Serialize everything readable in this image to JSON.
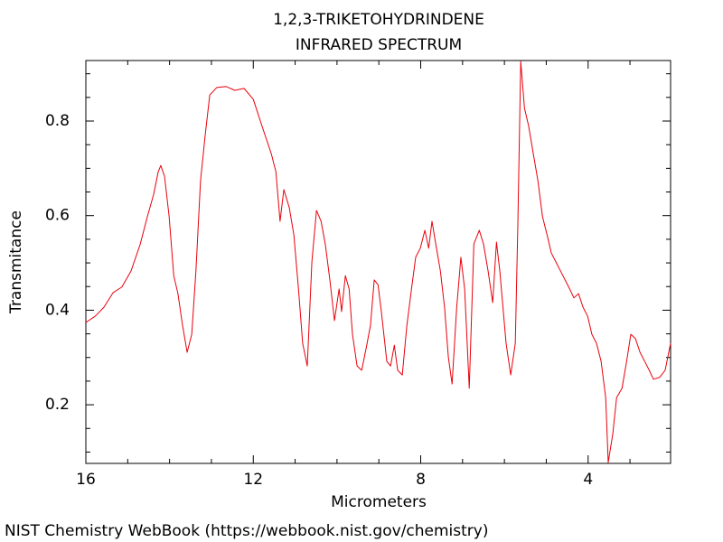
{
  "chart_data": {
    "type": "line",
    "title": "1,2,3-TRIKETOHYDRINDENE",
    "subtitle": "INFRARED SPECTRUM",
    "x_label": "Micrometers",
    "y_label": "Transmitance",
    "color": "#e8000b",
    "x": [
      16.0,
      15.78,
      15.57,
      15.35,
      15.14,
      14.92,
      14.7,
      14.53,
      14.38,
      14.27,
      14.21,
      14.12,
      14.01,
      13.9,
      13.8,
      13.69,
      13.58,
      13.47,
      13.37,
      13.26,
      13.15,
      13.04,
      12.87,
      12.65,
      12.44,
      12.22,
      12.0,
      11.79,
      11.57,
      11.46,
      11.36,
      11.27,
      11.14,
      11.03,
      10.92,
      10.82,
      10.71,
      10.6,
      10.49,
      10.38,
      10.28,
      10.17,
      10.06,
      9.95,
      9.89,
      9.8,
      9.71,
      9.63,
      9.52,
      9.41,
      9.3,
      9.2,
      9.11,
      9.02,
      8.94,
      8.81,
      8.72,
      8.63,
      8.55,
      8.44,
      8.33,
      8.22,
      8.12,
      8.01,
      7.9,
      7.81,
      7.73,
      7.64,
      7.53,
      7.43,
      7.34,
      7.25,
      7.14,
      7.04,
      6.95,
      6.84,
      6.73,
      6.6,
      6.5,
      6.39,
      6.28,
      6.19,
      6.11,
      5.96,
      5.85,
      5.74,
      5.68,
      5.61,
      5.52,
      5.42,
      5.31,
      5.2,
      5.09,
      4.98,
      4.88,
      4.77,
      4.66,
      4.55,
      4.44,
      4.34,
      4.23,
      4.12,
      4.01,
      3.91,
      3.8,
      3.69,
      3.58,
      3.52,
      3.41,
      3.32,
      3.19,
      3.08,
      2.98,
      2.87,
      2.76,
      2.65,
      2.54,
      2.44,
      2.29,
      2.16,
      2.03
    ],
    "values": [
      0.374,
      0.387,
      0.406,
      0.437,
      0.449,
      0.483,
      0.54,
      0.598,
      0.645,
      0.693,
      0.706,
      0.683,
      0.598,
      0.473,
      0.435,
      0.368,
      0.311,
      0.349,
      0.483,
      0.674,
      0.769,
      0.855,
      0.871,
      0.873,
      0.865,
      0.869,
      0.846,
      0.789,
      0.731,
      0.693,
      0.588,
      0.655,
      0.617,
      0.559,
      0.445,
      0.33,
      0.282,
      0.502,
      0.611,
      0.588,
      0.54,
      0.464,
      0.378,
      0.445,
      0.397,
      0.473,
      0.445,
      0.349,
      0.282,
      0.273,
      0.321,
      0.368,
      0.464,
      0.454,
      0.397,
      0.292,
      0.282,
      0.326,
      0.273,
      0.263,
      0.368,
      0.445,
      0.512,
      0.531,
      0.569,
      0.531,
      0.588,
      0.54,
      0.483,
      0.406,
      0.301,
      0.244,
      0.406,
      0.512,
      0.445,
      0.235,
      0.54,
      0.569,
      0.54,
      0.483,
      0.416,
      0.544,
      0.483,
      0.33,
      0.263,
      0.33,
      0.578,
      0.926,
      0.827,
      0.789,
      0.731,
      0.674,
      0.598,
      0.559,
      0.521,
      0.502,
      0.483,
      0.464,
      0.445,
      0.426,
      0.435,
      0.406,
      0.387,
      0.349,
      0.33,
      0.292,
      0.215,
      0.078,
      0.139,
      0.215,
      0.235,
      0.292,
      0.349,
      0.34,
      0.311,
      0.292,
      0.273,
      0.254,
      0.258,
      0.273,
      0.33
    ],
    "xlim": [
      16,
      2.03
    ],
    "ylim": [
      0.076,
      0.928
    ],
    "xticks": [
      16,
      12,
      8,
      4
    ],
    "yticks": [
      0.2,
      0.4,
      0.6,
      0.8
    ],
    "x_minor_ticks": [
      15,
      14,
      13,
      11,
      10,
      9,
      7,
      6,
      5,
      3
    ],
    "y_minor_ticks": [
      0.1,
      0.15,
      0.25,
      0.3,
      0.35,
      0.45,
      0.5,
      0.55,
      0.65,
      0.7,
      0.75,
      0.85,
      0.9
    ]
  },
  "footer": "NIST Chemistry WebBook (https://webbook.nist.gov/chemistry)"
}
